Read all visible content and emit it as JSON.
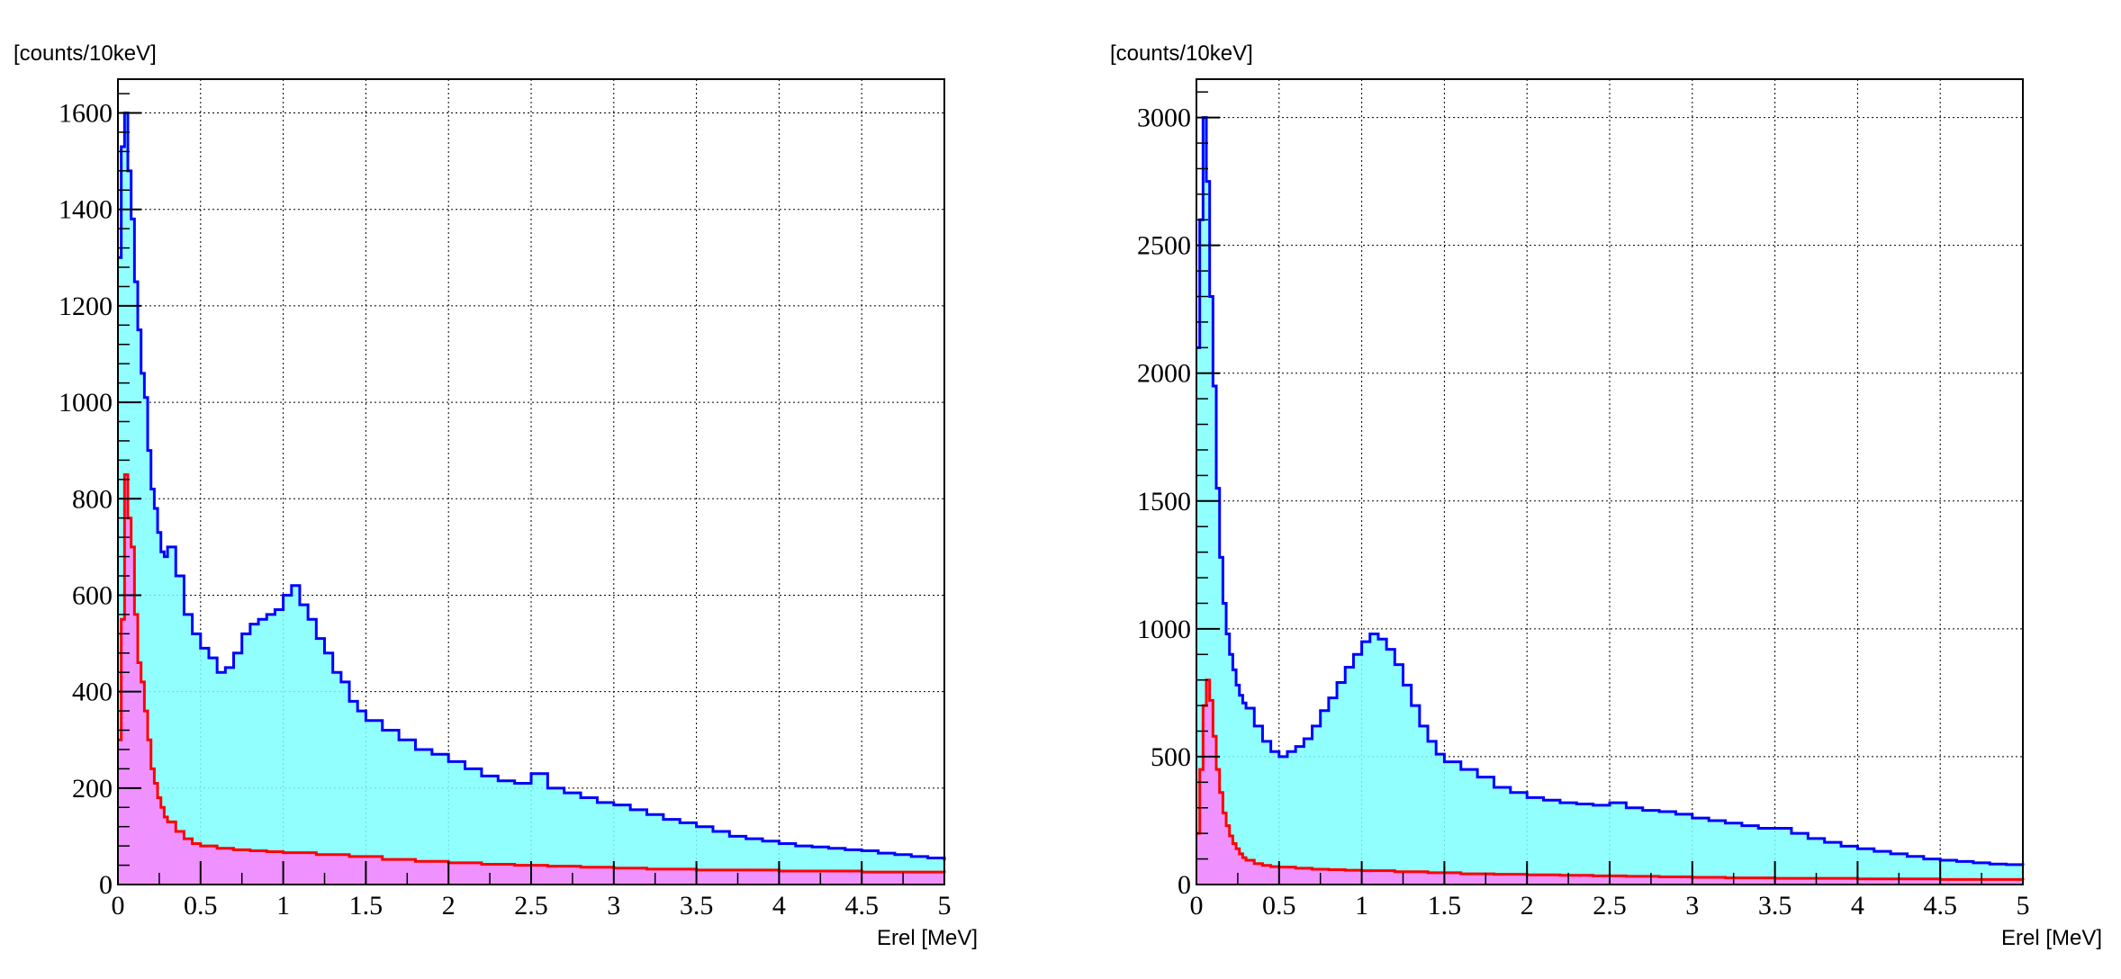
{
  "chart_data": [
    {
      "type": "area",
      "ylabel": "[counts/10keV]",
      "xlabel": "Erel [MeV]",
      "xlim": [
        0,
        5
      ],
      "ylim": [
        0,
        1670
      ],
      "grid": true,
      "xticks": [
        "0",
        "0.5",
        "1",
        "1.5",
        "2",
        "2.5",
        "3",
        "3.5",
        "4",
        "4.5",
        "5"
      ],
      "yticks": [
        "0",
        "200",
        "400",
        "600",
        "800",
        "1000",
        "1200",
        "1400",
        "1600"
      ],
      "series": [
        {
          "color": "#0000ff",
          "fill": "#7fffff",
          "points": [
            [
              0.0,
              1300
            ],
            [
              0.02,
              1530
            ],
            [
              0.04,
              1600
            ],
            [
              0.06,
              1480
            ],
            [
              0.08,
              1380
            ],
            [
              0.1,
              1250
            ],
            [
              0.12,
              1150
            ],
            [
              0.14,
              1060
            ],
            [
              0.16,
              1010
            ],
            [
              0.18,
              900
            ],
            [
              0.2,
              820
            ],
            [
              0.22,
              780
            ],
            [
              0.24,
              730
            ],
            [
              0.26,
              690
            ],
            [
              0.28,
              680
            ],
            [
              0.3,
              700
            ],
            [
              0.35,
              640
            ],
            [
              0.4,
              560
            ],
            [
              0.45,
              520
            ],
            [
              0.5,
              490
            ],
            [
              0.55,
              470
            ],
            [
              0.6,
              440
            ],
            [
              0.65,
              450
            ],
            [
              0.7,
              480
            ],
            [
              0.75,
              520
            ],
            [
              0.8,
              540
            ],
            [
              0.85,
              550
            ],
            [
              0.9,
              560
            ],
            [
              0.95,
              570
            ],
            [
              1.0,
              600
            ],
            [
              1.05,
              620
            ],
            [
              1.1,
              580
            ],
            [
              1.15,
              550
            ],
            [
              1.2,
              510
            ],
            [
              1.25,
              480
            ],
            [
              1.3,
              440
            ],
            [
              1.35,
              420
            ],
            [
              1.4,
              380
            ],
            [
              1.45,
              360
            ],
            [
              1.5,
              340
            ],
            [
              1.6,
              320
            ],
            [
              1.7,
              300
            ],
            [
              1.8,
              280
            ],
            [
              1.9,
              270
            ],
            [
              2.0,
              255
            ],
            [
              2.1,
              240
            ],
            [
              2.2,
              225
            ],
            [
              2.3,
              215
            ],
            [
              2.4,
              210
            ],
            [
              2.5,
              230
            ],
            [
              2.6,
              200
            ],
            [
              2.7,
              190
            ],
            [
              2.8,
              180
            ],
            [
              2.9,
              170
            ],
            [
              3.0,
              165
            ],
            [
              3.1,
              155
            ],
            [
              3.2,
              145
            ],
            [
              3.3,
              135
            ],
            [
              3.4,
              128
            ],
            [
              3.5,
              120
            ],
            [
              3.6,
              110
            ],
            [
              3.7,
              100
            ],
            [
              3.8,
              95
            ],
            [
              3.9,
              90
            ],
            [
              4.0,
              85
            ],
            [
              4.1,
              80
            ],
            [
              4.2,
              78
            ],
            [
              4.3,
              75
            ],
            [
              4.4,
              72
            ],
            [
              4.5,
              70
            ],
            [
              4.6,
              65
            ],
            [
              4.7,
              62
            ],
            [
              4.8,
              58
            ],
            [
              4.9,
              55
            ],
            [
              5.0,
              50
            ]
          ]
        },
        {
          "color": "#ff0000",
          "fill": "#ff7fff",
          "points": [
            [
              0.0,
              300
            ],
            [
              0.02,
              550
            ],
            [
              0.04,
              850
            ],
            [
              0.06,
              760
            ],
            [
              0.08,
              700
            ],
            [
              0.1,
              560
            ],
            [
              0.12,
              460
            ],
            [
              0.14,
              420
            ],
            [
              0.16,
              360
            ],
            [
              0.18,
              300
            ],
            [
              0.2,
              240
            ],
            [
              0.22,
              210
            ],
            [
              0.24,
              180
            ],
            [
              0.26,
              160
            ],
            [
              0.28,
              140
            ],
            [
              0.3,
              130
            ],
            [
              0.35,
              110
            ],
            [
              0.4,
              95
            ],
            [
              0.45,
              85
            ],
            [
              0.5,
              80
            ],
            [
              0.6,
              75
            ],
            [
              0.7,
              72
            ],
            [
              0.8,
              70
            ],
            [
              0.9,
              68
            ],
            [
              1.0,
              66
            ],
            [
              1.2,
              62
            ],
            [
              1.4,
              58
            ],
            [
              1.6,
              52
            ],
            [
              1.8,
              48
            ],
            [
              2.0,
              45
            ],
            [
              2.2,
              42
            ],
            [
              2.4,
              40
            ],
            [
              2.6,
              38
            ],
            [
              2.8,
              36
            ],
            [
              3.0,
              34
            ],
            [
              3.2,
              32
            ],
            [
              3.5,
              30
            ],
            [
              4.0,
              28
            ],
            [
              4.5,
              26
            ],
            [
              5.0,
              24
            ]
          ]
        }
      ]
    },
    {
      "type": "area",
      "ylabel": "[counts/10keV]",
      "xlabel": "Erel [MeV]",
      "xlim": [
        0,
        5
      ],
      "ylim": [
        0,
        3150
      ],
      "grid": true,
      "xticks": [
        "0",
        "0.5",
        "1",
        "1.5",
        "2",
        "2.5",
        "3",
        "3.5",
        "4",
        "4.5",
        "5"
      ],
      "yticks": [
        "0",
        "500",
        "1000",
        "1500",
        "2000",
        "2500",
        "3000"
      ],
      "series": [
        {
          "color": "#0000ff",
          "fill": "#7fffff",
          "points": [
            [
              0.0,
              2100
            ],
            [
              0.02,
              2600
            ],
            [
              0.04,
              3000
            ],
            [
              0.06,
              2750
            ],
            [
              0.08,
              2300
            ],
            [
              0.1,
              1950
            ],
            [
              0.12,
              1550
            ],
            [
              0.14,
              1280
            ],
            [
              0.16,
              1100
            ],
            [
              0.18,
              980
            ],
            [
              0.2,
              900
            ],
            [
              0.22,
              840
            ],
            [
              0.24,
              780
            ],
            [
              0.26,
              740
            ],
            [
              0.28,
              710
            ],
            [
              0.3,
              690
            ],
            [
              0.35,
              620
            ],
            [
              0.4,
              560
            ],
            [
              0.45,
              520
            ],
            [
              0.5,
              500
            ],
            [
              0.55,
              520
            ],
            [
              0.6,
              540
            ],
            [
              0.65,
              570
            ],
            [
              0.7,
              620
            ],
            [
              0.75,
              680
            ],
            [
              0.8,
              730
            ],
            [
              0.85,
              790
            ],
            [
              0.9,
              850
            ],
            [
              0.95,
              900
            ],
            [
              1.0,
              950
            ],
            [
              1.05,
              980
            ],
            [
              1.1,
              960
            ],
            [
              1.15,
              920
            ],
            [
              1.2,
              860
            ],
            [
              1.25,
              780
            ],
            [
              1.3,
              700
            ],
            [
              1.35,
              620
            ],
            [
              1.4,
              560
            ],
            [
              1.45,
              510
            ],
            [
              1.5,
              480
            ],
            [
              1.6,
              450
            ],
            [
              1.7,
              420
            ],
            [
              1.8,
              380
            ],
            [
              1.9,
              360
            ],
            [
              2.0,
              340
            ],
            [
              2.1,
              330
            ],
            [
              2.2,
              320
            ],
            [
              2.3,
              315
            ],
            [
              2.4,
              310
            ],
            [
              2.5,
              320
            ],
            [
              2.6,
              300
            ],
            [
              2.7,
              290
            ],
            [
              2.8,
              285
            ],
            [
              2.9,
              275
            ],
            [
              3.0,
              260
            ],
            [
              3.1,
              250
            ],
            [
              3.2,
              240
            ],
            [
              3.3,
              230
            ],
            [
              3.4,
              220
            ],
            [
              3.5,
              220
            ],
            [
              3.6,
              200
            ],
            [
              3.7,
              180
            ],
            [
              3.8,
              165
            ],
            [
              3.9,
              150
            ],
            [
              4.0,
              140
            ],
            [
              4.1,
              130
            ],
            [
              4.2,
              120
            ],
            [
              4.3,
              110
            ],
            [
              4.4,
              100
            ],
            [
              4.5,
              95
            ],
            [
              4.6,
              90
            ],
            [
              4.7,
              85
            ],
            [
              4.8,
              80
            ],
            [
              4.9,
              78
            ],
            [
              5.0,
              75
            ]
          ]
        },
        {
          "color": "#ff0000",
          "fill": "#ff7fff",
          "points": [
            [
              0.0,
              200
            ],
            [
              0.02,
              450
            ],
            [
              0.04,
              700
            ],
            [
              0.06,
              800
            ],
            [
              0.08,
              720
            ],
            [
              0.1,
              580
            ],
            [
              0.12,
              450
            ],
            [
              0.14,
              360
            ],
            [
              0.16,
              280
            ],
            [
              0.18,
              230
            ],
            [
              0.2,
              190
            ],
            [
              0.22,
              160
            ],
            [
              0.24,
              140
            ],
            [
              0.26,
              120
            ],
            [
              0.28,
              105
            ],
            [
              0.3,
              95
            ],
            [
              0.35,
              82
            ],
            [
              0.4,
              75
            ],
            [
              0.45,
              70
            ],
            [
              0.5,
              68
            ],
            [
              0.6,
              64
            ],
            [
              0.7,
              60
            ],
            [
              0.8,
              58
            ],
            [
              0.9,
              56
            ],
            [
              1.0,
              54
            ],
            [
              1.2,
              50
            ],
            [
              1.4,
              46
            ],
            [
              1.6,
              42
            ],
            [
              1.8,
              40
            ],
            [
              2.0,
              38
            ],
            [
              2.2,
              36
            ],
            [
              2.4,
              34
            ],
            [
              2.6,
              32
            ],
            [
              2.8,
              30
            ],
            [
              3.0,
              28
            ],
            [
              3.2,
              26
            ],
            [
              3.5,
              24
            ],
            [
              4.0,
              22
            ],
            [
              4.5,
              20
            ],
            [
              5.0,
              18
            ]
          ]
        }
      ]
    }
  ]
}
